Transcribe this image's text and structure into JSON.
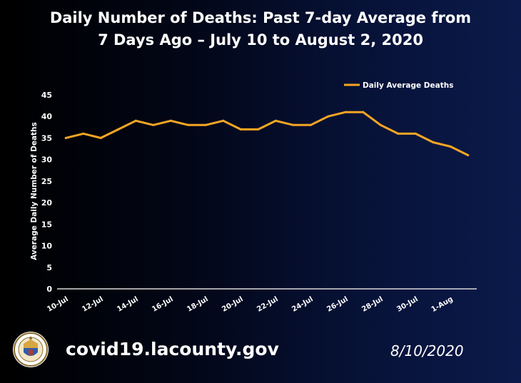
{
  "header": {
    "title_line1": "Daily Number of Deaths: Past 7-day Average from",
    "title_line2": "7 Days Ago – July 10 to August 2, 2020"
  },
  "chart_data": {
    "type": "line",
    "title": "Daily Number of Deaths: Past 7-day Average from 7 Days Ago – July 10 to August 2, 2020",
    "xlabel": "",
    "ylabel": "Average Daily Number of Deaths",
    "ylim": [
      0,
      45
    ],
    "yticks": [
      0,
      5,
      10,
      15,
      20,
      25,
      30,
      35,
      40,
      45
    ],
    "x": [
      "10-Jul",
      "11-Jul",
      "12-Jul",
      "13-Jul",
      "14-Jul",
      "15-Jul",
      "16-Jul",
      "17-Jul",
      "18-Jul",
      "19-Jul",
      "20-Jul",
      "21-Jul",
      "22-Jul",
      "23-Jul",
      "24-Jul",
      "25-Jul",
      "26-Jul",
      "27-Jul",
      "28-Jul",
      "29-Jul",
      "30-Jul",
      "31-Jul",
      "1-Aug",
      "2-Aug"
    ],
    "xtick_labels": [
      "10-Jul",
      "12-Jul",
      "14-Jul",
      "16-Jul",
      "18-Jul",
      "20-Jul",
      "22-Jul",
      "24-Jul",
      "26-Jul",
      "28-Jul",
      "30-Jul",
      "1-Aug"
    ],
    "series": [
      {
        "name": "Daily Average Deaths",
        "color": "#f5a623",
        "values": [
          35,
          36,
          35,
          37,
          39,
          38,
          39,
          38,
          38,
          39,
          37,
          37,
          39,
          38,
          38,
          40,
          41,
          41,
          38,
          36,
          36,
          34,
          33,
          31
        ]
      }
    ],
    "legend": "top-right",
    "grid": false
  },
  "footer": {
    "url": "covid19.lacounty.gov",
    "date": "8/10/2020",
    "seal_icon": "county-seal-icon"
  },
  "colors": {
    "line": "#f5a623",
    "axis": "#d9d9d9",
    "text": "#ffffff"
  }
}
